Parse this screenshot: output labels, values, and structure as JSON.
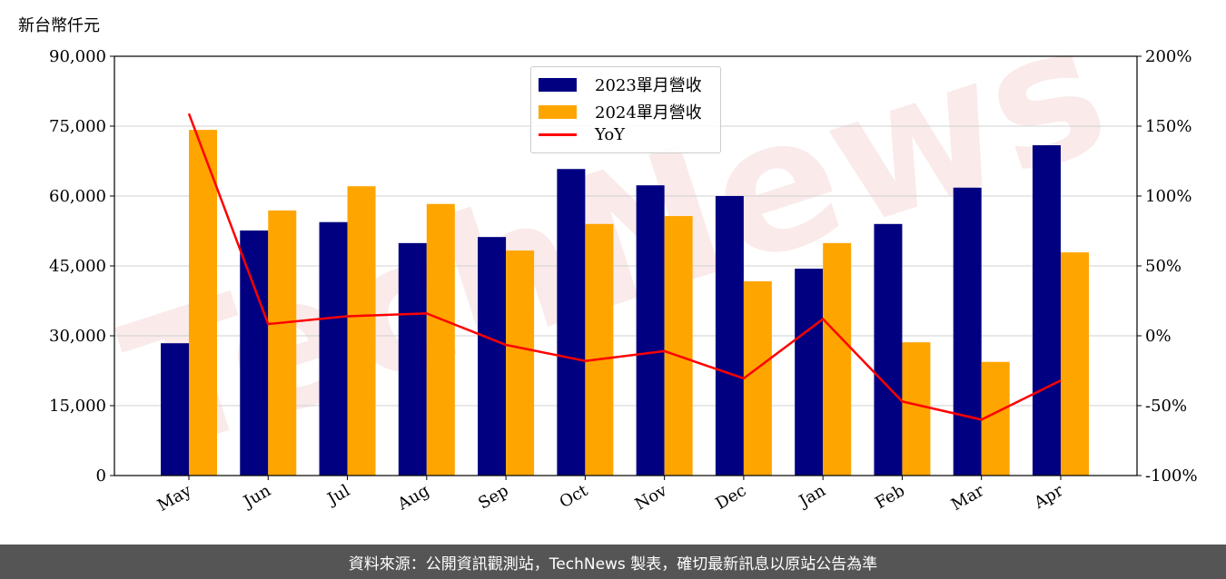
{
  "unit_label": "新台幣仟元",
  "footer": "資料來源：公開資訊觀測站，TechNews 製表，確切最新訊息以原站公告為準",
  "watermark": "TechNews",
  "chart_data": {
    "type": "bar",
    "categories": [
      "May",
      "Jun",
      "Jul",
      "Aug",
      "Sep",
      "Oct",
      "Nov",
      "Dec",
      "Jan",
      "Feb",
      "Mar",
      "Apr"
    ],
    "series": [
      {
        "name": "2023單月營收",
        "color": "#000080",
        "axis": "left",
        "values": [
          28400,
          52600,
          54400,
          49900,
          51200,
          65800,
          62300,
          60000,
          44400,
          54000,
          61800,
          70900
        ]
      },
      {
        "name": "2024單月營收",
        "color": "#FFA500",
        "axis": "left",
        "values": [
          74200,
          56900,
          62100,
          58300,
          48300,
          54000,
          55700,
          41700,
          49900,
          28600,
          24400,
          47900
        ]
      },
      {
        "name": "YoY",
        "type": "line",
        "color": "#FF0000",
        "axis": "right",
        "values": [
          159,
          8.4,
          14,
          16,
          -6.5,
          -18,
          -11,
          -30.5,
          12,
          -47,
          -60,
          -32
        ]
      }
    ],
    "left_axis": {
      "ylim": [
        0,
        90000
      ],
      "ticks": [
        "0",
        "15,000",
        "30,000",
        "45,000",
        "60,000",
        "75,000",
        "90,000"
      ]
    },
    "right_axis": {
      "ylim": [
        -100,
        200
      ],
      "ticks": [
        "-100%",
        "-50%",
        "0%",
        "50%",
        "100%",
        "150%",
        "200%"
      ]
    },
    "grid": true,
    "legend": "top-center"
  }
}
